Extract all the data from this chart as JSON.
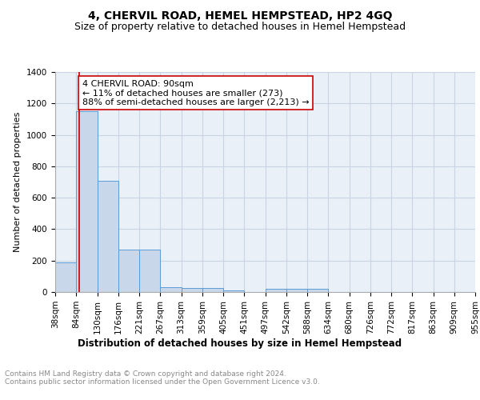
{
  "title": "4, CHERVIL ROAD, HEMEL HEMPSTEAD, HP2 4GQ",
  "subtitle": "Size of property relative to detached houses in Hemel Hempstead",
  "xlabel": "Distribution of detached houses by size in Hemel Hempstead",
  "ylabel": "Number of detached properties",
  "bins": [
    "38sqm",
    "84sqm",
    "130sqm",
    "176sqm",
    "221sqm",
    "267sqm",
    "313sqm",
    "359sqm",
    "405sqm",
    "451sqm",
    "497sqm",
    "542sqm",
    "588sqm",
    "634sqm",
    "680sqm",
    "726sqm",
    "772sqm",
    "817sqm",
    "863sqm",
    "909sqm",
    "955sqm"
  ],
  "values": [
    190,
    1150,
    710,
    270,
    270,
    30,
    25,
    25,
    12,
    0,
    18,
    18,
    18,
    0,
    0,
    0,
    0,
    0,
    0,
    0
  ],
  "bar_color": "#c8d8ea",
  "bar_edge_color": "#5b9bd5",
  "grid_color": "#c8d4e4",
  "background_color": "#eaf0f8",
  "vline_color": "#cc0000",
  "annotation_text": "4 CHERVIL ROAD: 90sqm\n← 11% of detached houses are smaller (273)\n88% of semi-detached houses are larger (2,213) →",
  "annotation_box_color": "#ffffff",
  "annotation_box_edge": "#cc0000",
  "ylim": [
    0,
    1400
  ],
  "yticks": [
    0,
    200,
    400,
    600,
    800,
    1000,
    1200,
    1400
  ],
  "footer_text": "Contains HM Land Registry data © Crown copyright and database right 2024.\nContains public sector information licensed under the Open Government Licence v3.0.",
  "title_fontsize": 10,
  "subtitle_fontsize": 9,
  "xlabel_fontsize": 8.5,
  "ylabel_fontsize": 8,
  "tick_fontsize": 7.5,
  "annotation_fontsize": 8,
  "footer_fontsize": 6.5
}
